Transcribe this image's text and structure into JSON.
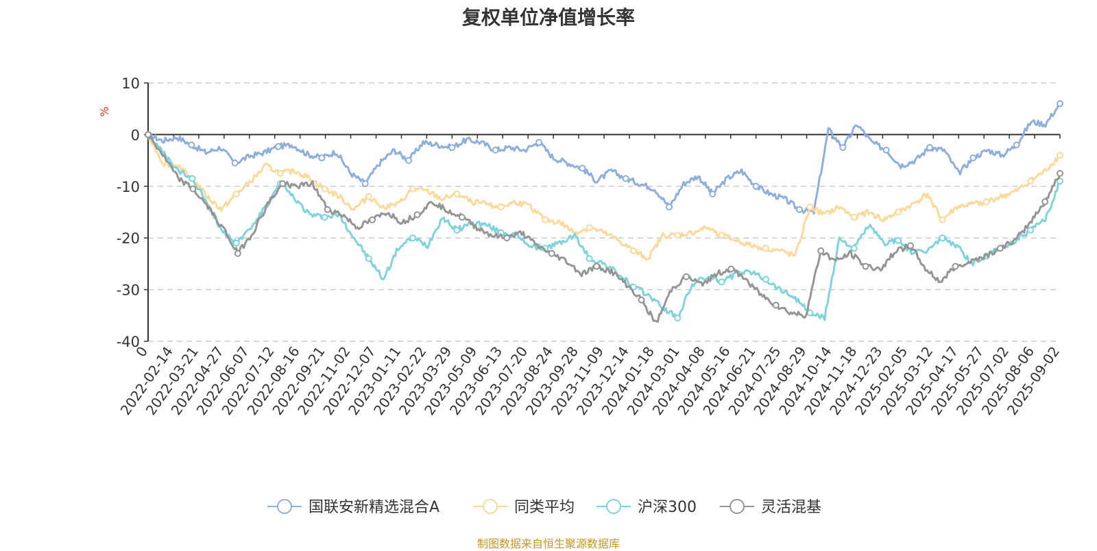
{
  "chart_data": {
    "type": "line",
    "title": "复权单位净值增长率",
    "ylabel": "%",
    "ylim": [
      -40,
      10
    ],
    "yticks": [
      10,
      0,
      -10,
      -20,
      -30,
      -40
    ],
    "x_tick_labels": [
      "0",
      "2022-02-14",
      "2022-03-21",
      "2022-04-27",
      "2022-06-07",
      "2022-07-12",
      "2022-08-16",
      "2022-09-21",
      "2022-11-02",
      "2022-12-07",
      "2023-01-11",
      "2023-02-22",
      "2023-03-29",
      "2023-05-09",
      "2023-06-13",
      "2023-07-20",
      "2023-08-24",
      "2023-09-28",
      "2023-11-09",
      "2023-12-14",
      "2024-01-18",
      "2024-03-01",
      "2024-04-08",
      "2024-05-16",
      "2024-06-21",
      "2024-07-25",
      "2024-08-29",
      "2024-10-14",
      "2024-11-18",
      "2024-12-23",
      "2025-02-05",
      "2025-03-12",
      "2025-04-17",
      "2025-05-27",
      "2025-07-02",
      "2025-08-06",
      "2025-09-02"
    ],
    "legend_position": "bottom",
    "grid": true,
    "series": [
      {
        "name": "国联安新精选混合A",
        "color": "#8eaedd",
        "values": [
          0,
          -1.2,
          -0.5,
          -2.0,
          -3.5,
          -2.5,
          -5.5,
          -4.2,
          -3.5,
          -2.3,
          -2.0,
          -3.8,
          -4.5,
          -3.3,
          -7.5,
          -9.5,
          -5.5,
          -3.0,
          -5.0,
          -1.5,
          -2.0,
          -2.5,
          -1.0,
          -1.5,
          -3.0,
          -2.5,
          -3.0,
          -1.5,
          -4.5,
          -5.5,
          -6.5,
          -9.0,
          -7.0,
          -8.5,
          -9.5,
          -10.5,
          -14.0,
          -9.5,
          -8.0,
          -11.5,
          -8.5,
          -7.0,
          -10.0,
          -11.5,
          -12.5,
          -14.5,
          -15.0,
          1.0,
          -2.5,
          2.0,
          -1.5,
          -3.0,
          -6.0,
          -5.0,
          -2.5,
          -3.0,
          -7.5,
          -4.5,
          -3.0,
          -4.0,
          -2.0,
          2.5,
          2.0,
          6.0
        ]
      },
      {
        "name": "同类平均",
        "color": "#fcd99a",
        "values": [
          0,
          -5.5,
          -6.0,
          -8.5,
          -12.0,
          -14.5,
          -11.5,
          -9.0,
          -6.0,
          -7.5,
          -7.0,
          -8.5,
          -10.5,
          -12.0,
          -14.5,
          -12.0,
          -14.0,
          -13.5,
          -10.5,
          -11.0,
          -12.5,
          -11.5,
          -13.0,
          -13.5,
          -14.0,
          -13.0,
          -14.0,
          -16.5,
          -17.0,
          -19.0,
          -18.0,
          -19.0,
          -20.5,
          -22.5,
          -24.0,
          -19.5,
          -19.5,
          -19.0,
          -18.0,
          -19.5,
          -20.5,
          -21.5,
          -22.0,
          -22.5,
          -23.5,
          -14.0,
          -15.5,
          -14.0,
          -16.0,
          -15.0,
          -16.5,
          -15.0,
          -13.5,
          -11.5,
          -16.5,
          -14.0,
          -13.5,
          -13.0,
          -12.0,
          -11.0,
          -9.0,
          -7.0,
          -4.0
        ]
      },
      {
        "name": "沪深300",
        "color": "#7ed3dc",
        "values": [
          0,
          -3.5,
          -7.0,
          -8.5,
          -13.0,
          -18.5,
          -21.0,
          -18.0,
          -14.0,
          -9.5,
          -12.5,
          -15.5,
          -16.0,
          -15.5,
          -20.0,
          -24.0,
          -28.0,
          -22.0,
          -20.0,
          -21.5,
          -16.0,
          -18.5,
          -17.0,
          -17.5,
          -19.0,
          -19.5,
          -21.5,
          -22.0,
          -21.0,
          -19.5,
          -24.0,
          -25.0,
          -27.0,
          -29.5,
          -31.0,
          -33.5,
          -35.5,
          -29.0,
          -27.5,
          -28.5,
          -27.0,
          -26.5,
          -28.0,
          -30.0,
          -31.5,
          -34.5,
          -35.5,
          -20.0,
          -22.0,
          -17.5,
          -21.0,
          -20.5,
          -23.0,
          -22.5,
          -20.0,
          -21.5,
          -25.0,
          -23.5,
          -22.0,
          -20.5,
          -18.5,
          -16.5,
          -9.0
        ]
      },
      {
        "name": "灵活混基",
        "color": "#959595",
        "values": [
          0,
          -4.0,
          -8.5,
          -10.5,
          -14.0,
          -18.0,
          -23.0,
          -19.0,
          -13.5,
          -9.5,
          -10.0,
          -9.5,
          -14.5,
          -15.5,
          -18.0,
          -16.5,
          -15.0,
          -17.0,
          -15.5,
          -13.0,
          -14.5,
          -16.0,
          -18.0,
          -19.5,
          -20.0,
          -19.0,
          -21.5,
          -23.0,
          -24.5,
          -27.0,
          -25.5,
          -26.5,
          -29.0,
          -32.0,
          -36.5,
          -30.0,
          -27.5,
          -29.0,
          -27.0,
          -26.0,
          -28.0,
          -31.0,
          -33.0,
          -34.5,
          -35.0,
          -22.5,
          -24.5,
          -23.0,
          -25.5,
          -26.0,
          -22.5,
          -21.5,
          -26.0,
          -28.5,
          -25.5,
          -24.5,
          -23.5,
          -22.0,
          -20.5,
          -17.0,
          -13.0,
          -7.5
        ]
      }
    ]
  },
  "footer": {
    "source": "制图数据来自恒生聚源数据库"
  }
}
